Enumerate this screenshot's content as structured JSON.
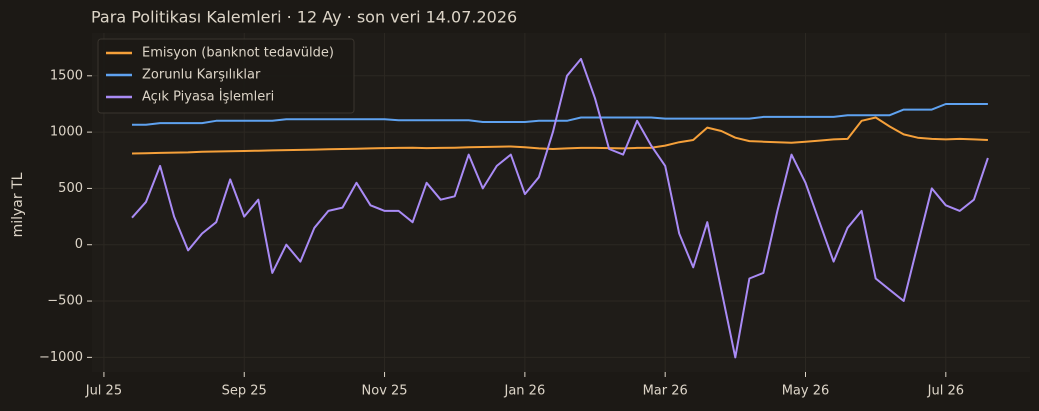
{
  "chart_data": {
    "type": "line",
    "title": "Para Politikası Kalemleri · 12 Ay · son veri 14.07.2026",
    "y_label": "milyar TL",
    "x": [
      0.4,
      0.6,
      0.8,
      1.0,
      1.2,
      1.4,
      1.6,
      1.8,
      2.0,
      2.2,
      2.4,
      2.6,
      2.8,
      3.0,
      3.2,
      3.4,
      3.6,
      3.8,
      4.0,
      4.2,
      4.4,
      4.6,
      4.8,
      5.0,
      5.2,
      5.4,
      5.6,
      5.8,
      6.0,
      6.2,
      6.4,
      6.6,
      6.8,
      7.0,
      7.2,
      7.4,
      7.6,
      7.8,
      8.0,
      8.2,
      8.4,
      8.6,
      8.8,
      9.0,
      9.2,
      9.4,
      9.6,
      9.8,
      10.0,
      10.2,
      10.4,
      10.6,
      10.8,
      11.0,
      11.2,
      11.4,
      11.6,
      11.8,
      12.0,
      12.2,
      12.4,
      12.6
    ],
    "series": [
      {
        "name": "Emisyon (banknot tedavülde)",
        "color": "#f5a03a",
        "values": [
          810,
          812,
          815,
          818,
          820,
          825,
          828,
          830,
          832,
          835,
          838,
          840,
          842,
          845,
          848,
          850,
          852,
          855,
          858,
          860,
          862,
          858,
          860,
          862,
          865,
          868,
          870,
          872,
          865,
          855,
          850,
          855,
          860,
          860,
          858,
          855,
          860,
          862,
          880,
          910,
          930,
          1040,
          1010,
          950,
          920,
          915,
          910,
          905,
          915,
          925,
          935,
          940,
          1100,
          1130,
          1050,
          980,
          950,
          940,
          935,
          940,
          935,
          930
        ]
      },
      {
        "name": "Zorunlu Karşılıklar",
        "color": "#5fa2f0",
        "values": [
          1065,
          1065,
          1080,
          1080,
          1080,
          1080,
          1100,
          1100,
          1100,
          1100,
          1100,
          1115,
          1115,
          1115,
          1115,
          1115,
          1115,
          1115,
          1115,
          1105,
          1105,
          1105,
          1105,
          1105,
          1105,
          1090,
          1090,
          1090,
          1090,
          1100,
          1100,
          1100,
          1130,
          1130,
          1130,
          1130,
          1130,
          1130,
          1120,
          1120,
          1120,
          1120,
          1120,
          1120,
          1120,
          1135,
          1135,
          1135,
          1135,
          1135,
          1135,
          1150,
          1150,
          1150,
          1150,
          1200,
          1200,
          1200,
          1250,
          1250,
          1250,
          1250
        ]
      },
      {
        "name": "Açık Piyasa İşlemleri",
        "color": "#a98bf5",
        "values": [
          240,
          380,
          700,
          250,
          -50,
          100,
          200,
          580,
          250,
          400,
          -250,
          0,
          -150,
          150,
          300,
          330,
          550,
          350,
          300,
          300,
          200,
          550,
          400,
          430,
          800,
          500,
          700,
          800,
          450,
          600,
          1000,
          1500,
          1650,
          1300,
          850,
          800,
          1100,
          880,
          700,
          100,
          -200,
          200,
          -400,
          -1000,
          -300,
          -250,
          300,
          800,
          550,
          200,
          -150,
          150,
          300,
          -300,
          -400,
          -500,
          0,
          500,
          350,
          300,
          400,
          770
        ]
      }
    ],
    "xlim": [
      -0.17,
      13.2
    ],
    "xticks": [
      {
        "value": 0,
        "label": "Jul 25"
      },
      {
        "value": 2,
        "label": "Sep 25"
      },
      {
        "value": 4,
        "label": "Nov 25"
      },
      {
        "value": 6,
        "label": "Jan 26"
      },
      {
        "value": 8,
        "label": "Mar 26"
      },
      {
        "value": 10,
        "label": "May 26"
      },
      {
        "value": 12,
        "label": "Jul 26"
      }
    ],
    "ylim": [
      -1130,
      1880
    ],
    "yticks": [
      {
        "value": -1000,
        "label": "−1000"
      },
      {
        "value": -500,
        "label": "−500"
      },
      0,
      500,
      1000,
      1500
    ],
    "grid": true,
    "legend": "upper left"
  }
}
